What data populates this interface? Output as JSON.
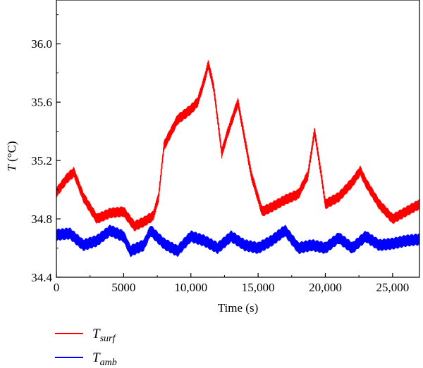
{
  "chart_data": {
    "type": "line",
    "xlabel": "Time (s)",
    "ylabel": {
      "symbol": "T",
      "unit": " (°C)"
    },
    "xlim": [
      0,
      27000
    ],
    "ylim": [
      34.4,
      36.3
    ],
    "xticks": [
      {
        "value": 0,
        "label": "0"
      },
      {
        "value": 5000,
        "label": "5000"
      },
      {
        "value": 10000,
        "label": "10,000"
      },
      {
        "value": 15000,
        "label": "15,000"
      },
      {
        "value": 20000,
        "label": "20,000"
      },
      {
        "value": 25000,
        "label": "25,000"
      }
    ],
    "yticks": [
      {
        "value": 34.4,
        "label": "34.4"
      },
      {
        "value": 34.8,
        "label": "34.8"
      },
      {
        "value": 35.2,
        "label": "35.2"
      },
      {
        "value": 35.6,
        "label": "35.6"
      },
      {
        "value": 36.0,
        "label": "36.0"
      }
    ],
    "grid": false,
    "legend_placement": "bottom-left, below plot",
    "series": [
      {
        "name": "T_surf",
        "label_main": "T",
        "label_sub": "surf",
        "color": "#ff0000",
        "band_half_width": 0.035,
        "x": [
          0,
          800,
          1300,
          2000,
          3000,
          4000,
          5000,
          5800,
          6500,
          7200,
          7600,
          8000,
          9000,
          10000,
          10500,
          11000,
          11300,
          11700,
          12300,
          12700,
          13500,
          13800,
          14500,
          15300,
          16000,
          17000,
          18000,
          18700,
          19200,
          19700,
          20000,
          21000,
          22000,
          22600,
          23000,
          24000,
          25000,
          26000,
          27000
        ],
        "y": [
          34.98,
          35.08,
          35.12,
          34.95,
          34.8,
          34.84,
          34.85,
          34.75,
          34.78,
          34.82,
          34.95,
          35.3,
          35.48,
          35.55,
          35.6,
          35.75,
          35.86,
          35.7,
          35.25,
          35.38,
          35.6,
          35.45,
          35.1,
          34.85,
          34.88,
          34.93,
          34.97,
          35.1,
          35.4,
          35.1,
          34.9,
          34.95,
          35.05,
          35.13,
          35.05,
          34.9,
          34.8,
          34.85,
          34.9
        ]
      },
      {
        "name": "T_amb",
        "label_main": "T",
        "label_sub": "amb",
        "color": "#0000ff",
        "band_half_width": 0.04,
        "x": [
          0,
          1000,
          2000,
          3000,
          4000,
          5000,
          5500,
          6500,
          7000,
          8000,
          9000,
          10000,
          11000,
          12000,
          13000,
          14000,
          15000,
          16000,
          17000,
          18000,
          19000,
          20000,
          21000,
          22000,
          23000,
          24000,
          25000,
          26000,
          27000
        ],
        "y": [
          34.69,
          34.7,
          34.62,
          34.65,
          34.72,
          34.68,
          34.58,
          34.62,
          34.72,
          34.63,
          34.58,
          34.68,
          34.65,
          34.6,
          34.68,
          34.62,
          34.6,
          34.65,
          34.72,
          34.6,
          34.62,
          34.6,
          34.67,
          34.6,
          34.68,
          34.62,
          34.63,
          34.65,
          34.66
        ]
      }
    ]
  }
}
